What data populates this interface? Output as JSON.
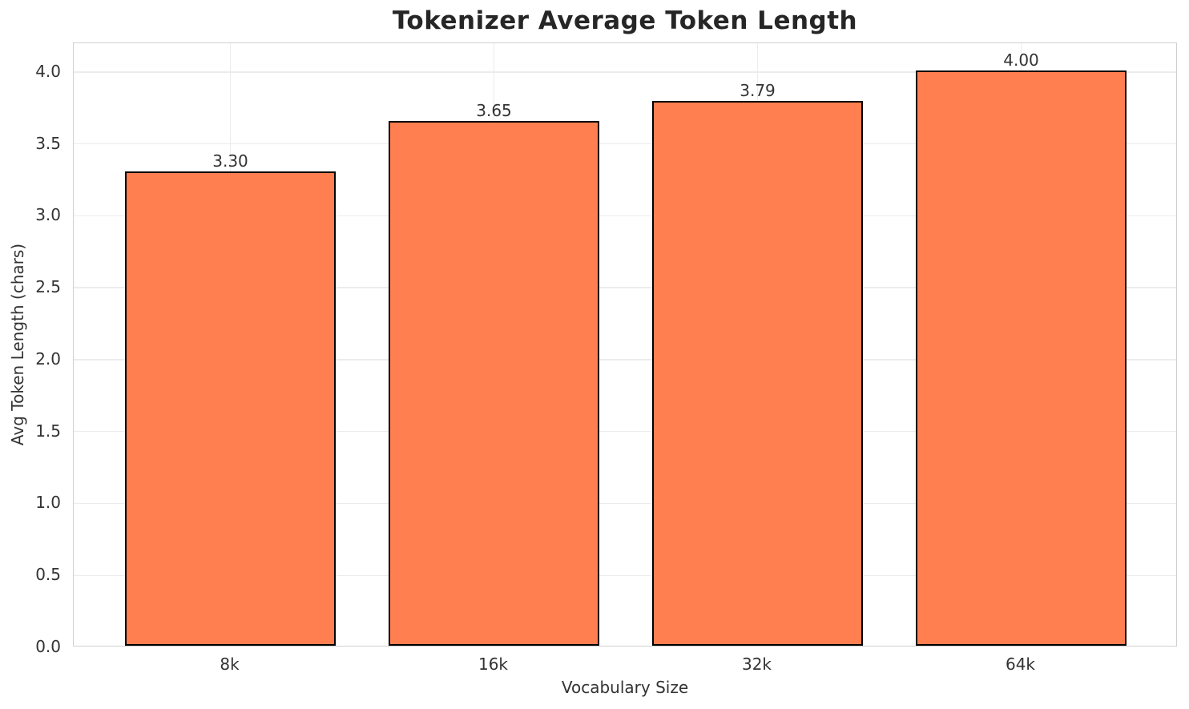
{
  "chart_data": {
    "type": "bar",
    "title": "Tokenizer Average Token Length",
    "xlabel": "Vocabulary Size",
    "ylabel": "Avg Token Length (chars)",
    "categories": [
      "8k",
      "16k",
      "32k",
      "64k"
    ],
    "values": [
      3.3,
      3.65,
      3.79,
      4.0
    ],
    "value_labels": [
      "3.30",
      "3.65",
      "3.79",
      "4.00"
    ],
    "yticks": [
      0.0,
      0.5,
      1.0,
      1.5,
      2.0,
      2.5,
      3.0,
      3.5,
      4.0
    ],
    "ytick_labels": [
      "0.0",
      "0.5",
      "1.0",
      "1.5",
      "2.0",
      "2.5",
      "3.0",
      "3.5",
      "4.0"
    ],
    "ylim": [
      0,
      4.2
    ],
    "grid": true,
    "legend": null,
    "bar_color": "#FF7F50",
    "bar_edge_color": "#000000",
    "grid_color": "#ececec",
    "spine_color": "#cfcfcf",
    "text_color": "#333333",
    "title_color": "#262626",
    "background_color": "#ffffff"
  }
}
